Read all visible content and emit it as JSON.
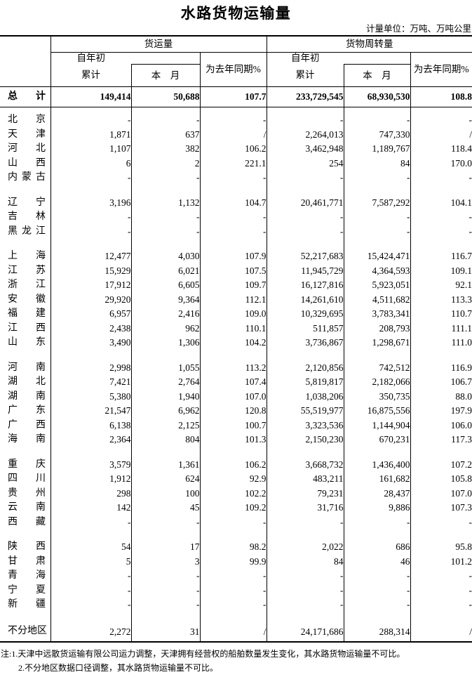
{
  "title": "水路货物运输量",
  "unit_note": "计量单位：万吨、万吨公里",
  "header": {
    "freight_volume": "货运量",
    "turnover": "货物周转量",
    "since_year_start": "自年初",
    "cumulative": "累计",
    "this_month": "本　月",
    "pct_of_last_year": "为去年同期%"
  },
  "table": {
    "total_row": {
      "region": "总　计",
      "values": [
        "149,414",
        "50,688",
        "107.7",
        "233,729,545",
        "68,930,530",
        "108.8"
      ]
    },
    "groups": [
      [
        {
          "region": "北　京",
          "values": [
            "-",
            "-",
            "-",
            "-",
            "-",
            "-"
          ]
        },
        {
          "region": "天　津",
          "values": [
            "1,871",
            "637",
            "/",
            "2,264,013",
            "747,330",
            "/"
          ]
        },
        {
          "region": "河　北",
          "values": [
            "1,107",
            "382",
            "106.2",
            "3,462,948",
            "1,189,767",
            "118.4"
          ]
        },
        {
          "region": "山　西",
          "values": [
            "6",
            "2",
            "221.1",
            "254",
            "84",
            "170.0"
          ]
        },
        {
          "region": "内蒙古",
          "values": [
            "-",
            "-",
            "-",
            "-",
            "-",
            "-"
          ]
        }
      ],
      [
        {
          "region": "辽　宁",
          "values": [
            "3,196",
            "1,132",
            "104.7",
            "20,461,771",
            "7,587,292",
            "104.1"
          ]
        },
        {
          "region": "吉　林",
          "values": [
            "-",
            "-",
            "-",
            "-",
            "-",
            "-"
          ]
        },
        {
          "region": "黑龙江",
          "values": [
            "-",
            "-",
            "-",
            "-",
            "-",
            "-"
          ]
        }
      ],
      [
        {
          "region": "上　海",
          "values": [
            "12,477",
            "4,030",
            "107.9",
            "52,217,683",
            "15,424,471",
            "116.7"
          ]
        },
        {
          "region": "江　苏",
          "values": [
            "15,929",
            "6,021",
            "107.5",
            "11,945,729",
            "4,364,593",
            "109.1"
          ]
        },
        {
          "region": "浙　江",
          "values": [
            "17,912",
            "6,605",
            "109.7",
            "16,127,816",
            "5,923,051",
            "92.1"
          ]
        },
        {
          "region": "安　徽",
          "values": [
            "29,920",
            "9,364",
            "112.1",
            "14,261,610",
            "4,511,682",
            "113.3"
          ]
        },
        {
          "region": "福　建",
          "values": [
            "6,957",
            "2,416",
            "109.0",
            "10,329,695",
            "3,783,341",
            "110.7"
          ]
        },
        {
          "region": "江　西",
          "values": [
            "2,438",
            "962",
            "110.1",
            "511,857",
            "208,793",
            "111.1"
          ]
        },
        {
          "region": "山　东",
          "values": [
            "3,490",
            "1,306",
            "104.2",
            "3,736,867",
            "1,298,671",
            "111.0"
          ]
        }
      ],
      [
        {
          "region": "河　南",
          "values": [
            "2,998",
            "1,055",
            "113.2",
            "2,120,856",
            "742,512",
            "116.9"
          ]
        },
        {
          "region": "湖　北",
          "values": [
            "7,421",
            "2,764",
            "107.4",
            "5,819,817",
            "2,182,066",
            "106.7"
          ]
        },
        {
          "region": "湖　南",
          "values": [
            "5,380",
            "1,940",
            "107.0",
            "1,038,206",
            "350,735",
            "88.0"
          ]
        },
        {
          "region": "广　东",
          "values": [
            "21,547",
            "6,962",
            "120.8",
            "55,519,977",
            "16,875,556",
            "197.9"
          ]
        },
        {
          "region": "广　西",
          "values": [
            "6,138",
            "2,125",
            "100.7",
            "3,323,536",
            "1,144,904",
            "106.0"
          ]
        },
        {
          "region": "海　南",
          "values": [
            "2,364",
            "804",
            "101.3",
            "2,150,230",
            "670,231",
            "117.3"
          ]
        }
      ],
      [
        {
          "region": "重　庆",
          "values": [
            "3,579",
            "1,361",
            "106.2",
            "3,668,732",
            "1,436,400",
            "107.2"
          ]
        },
        {
          "region": "四　川",
          "values": [
            "1,912",
            "624",
            "92.9",
            "483,211",
            "161,682",
            "105.8"
          ]
        },
        {
          "region": "贵　州",
          "values": [
            "298",
            "100",
            "102.2",
            "79,231",
            "28,437",
            "107.0"
          ]
        },
        {
          "region": "云　南",
          "values": [
            "142",
            "45",
            "109.2",
            "31,716",
            "9,886",
            "107.3"
          ]
        },
        {
          "region": "西　藏",
          "values": [
            "-",
            "-",
            "-",
            "-",
            "-",
            "-"
          ]
        }
      ],
      [
        {
          "region": "陕　西",
          "values": [
            "54",
            "17",
            "98.2",
            "2,022",
            "686",
            "95.8"
          ]
        },
        {
          "region": "甘　肃",
          "values": [
            "5",
            "3",
            "99.9",
            "84",
            "46",
            "101.2"
          ]
        },
        {
          "region": "青　海",
          "values": [
            "-",
            "-",
            "-",
            "-",
            "-",
            "-"
          ]
        },
        {
          "region": "宁　夏",
          "values": [
            "-",
            "-",
            "-",
            "-",
            "-",
            "-"
          ]
        },
        {
          "region": "新　疆",
          "values": [
            "-",
            "-",
            "-",
            "-",
            "-",
            "-"
          ]
        }
      ]
    ],
    "footer_row": {
      "region": "不分地区",
      "values": [
        "2,272",
        "31",
        "/",
        "24,171,686",
        "288,314",
        "/"
      ]
    }
  },
  "notes": {
    "line1": "注:1.天津中远散货运输有限公司运力调整，天津拥有经营权的船舶数量发生变化，其水路货物运输量不可比。",
    "line2": "2.不分地区数据口径调整，其水路货物运输量不可比。"
  }
}
